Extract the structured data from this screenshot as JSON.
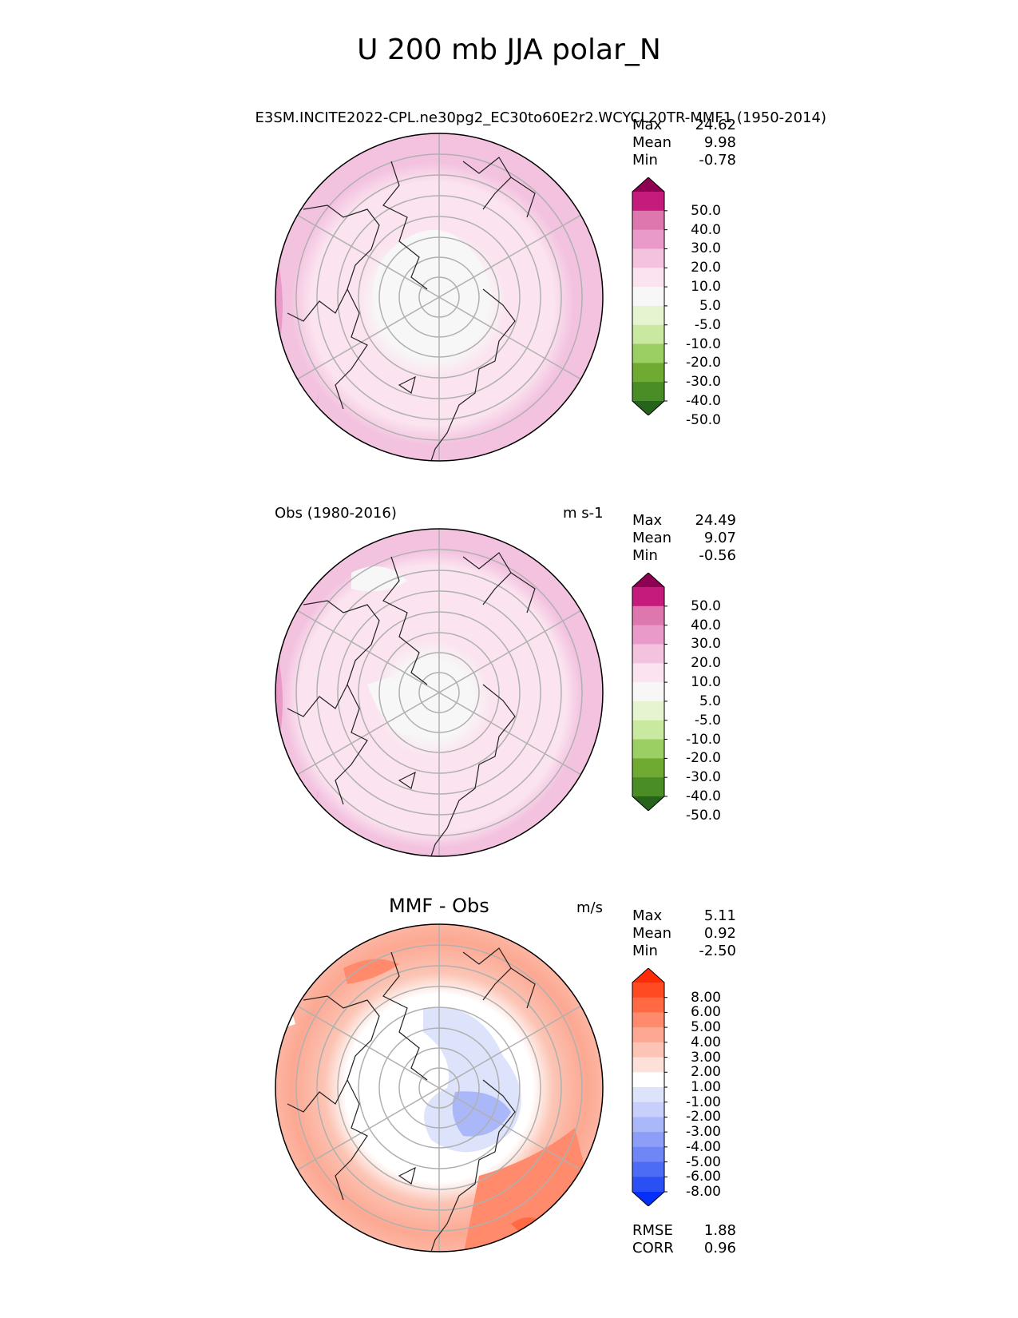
{
  "figure": {
    "title": "U 200 mb JJA polar_N"
  },
  "panels": [
    {
      "left_title": "",
      "center_title": "",
      "right_title": "E3SM.INCITE2022-CPL.ne30pg2_EC30to60E2r2.WCYCL20TR-MMF1 (1950-2014)",
      "stats": [
        {
          "label": "Max",
          "value": "24.62"
        },
        {
          "label": "Mean",
          "value": "9.98"
        },
        {
          "label": "Min",
          "value": "-0.78"
        }
      ],
      "colorbar": {
        "ticks": [
          "50.0",
          "40.0",
          "30.0",
          "20.0",
          "10.0",
          "5.0",
          "-5.0",
          "-10.0",
          "-20.0",
          "-30.0",
          "-40.0",
          "-50.0"
        ],
        "colors": [
          "#8e0152",
          "#c51b7d",
          "#de77ae",
          "#e99ac8",
          "#f3c2df",
          "#fbe3ef",
          "#f7f7f7",
          "#e6f5d0",
          "#c9e8a0",
          "#9ccf63",
          "#6faa33",
          "#4a8c26",
          "#27641b"
        ]
      }
    },
    {
      "left_title": "Obs (1980-2016)",
      "center_title": "",
      "right_title": "m s-1",
      "stats": [
        {
          "label": "Max",
          "value": "24.49"
        },
        {
          "label": "Mean",
          "value": "9.07"
        },
        {
          "label": "Min",
          "value": "-0.56"
        }
      ],
      "colorbar": {
        "ticks": [
          "50.0",
          "40.0",
          "30.0",
          "20.0",
          "10.0",
          "5.0",
          "-5.0",
          "-10.0",
          "-20.0",
          "-30.0",
          "-40.0",
          "-50.0"
        ],
        "colors": [
          "#8e0152",
          "#c51b7d",
          "#de77ae",
          "#e99ac8",
          "#f3c2df",
          "#fbe3ef",
          "#f7f7f7",
          "#e6f5d0",
          "#c9e8a0",
          "#9ccf63",
          "#6faa33",
          "#4a8c26",
          "#27641b"
        ]
      }
    },
    {
      "left_title": "",
      "center_title": "MMF - Obs",
      "right_title": "m/s",
      "stats": [
        {
          "label": "Max",
          "value": "5.11"
        },
        {
          "label": "Mean",
          "value": "0.92"
        },
        {
          "label": "Min",
          "value": "-2.50"
        }
      ],
      "extra_stats": [
        {
          "label": "RMSE",
          "value": "1.88"
        },
        {
          "label": "CORR",
          "value": "0.96"
        }
      ],
      "colorbar": {
        "ticks": [
          "8.00",
          "6.00",
          "5.00",
          "4.00",
          "3.00",
          "2.00",
          "1.00",
          "-1.00",
          "-2.00",
          "-3.00",
          "-4.00",
          "-5.00",
          "-6.00",
          "-8.00"
        ],
        "colors": [
          "#ff2a08",
          "#ff4a22",
          "#ff6a45",
          "#ff8a6c",
          "#fca892",
          "#fcc4b4",
          "#fde0d8",
          "#ffffff",
          "#dde3fb",
          "#c6d0fa",
          "#aab8f9",
          "#8c9ef8",
          "#6f86f7",
          "#4d6cf6",
          "#2a4ff5",
          "#0530fa"
        ]
      }
    }
  ]
}
